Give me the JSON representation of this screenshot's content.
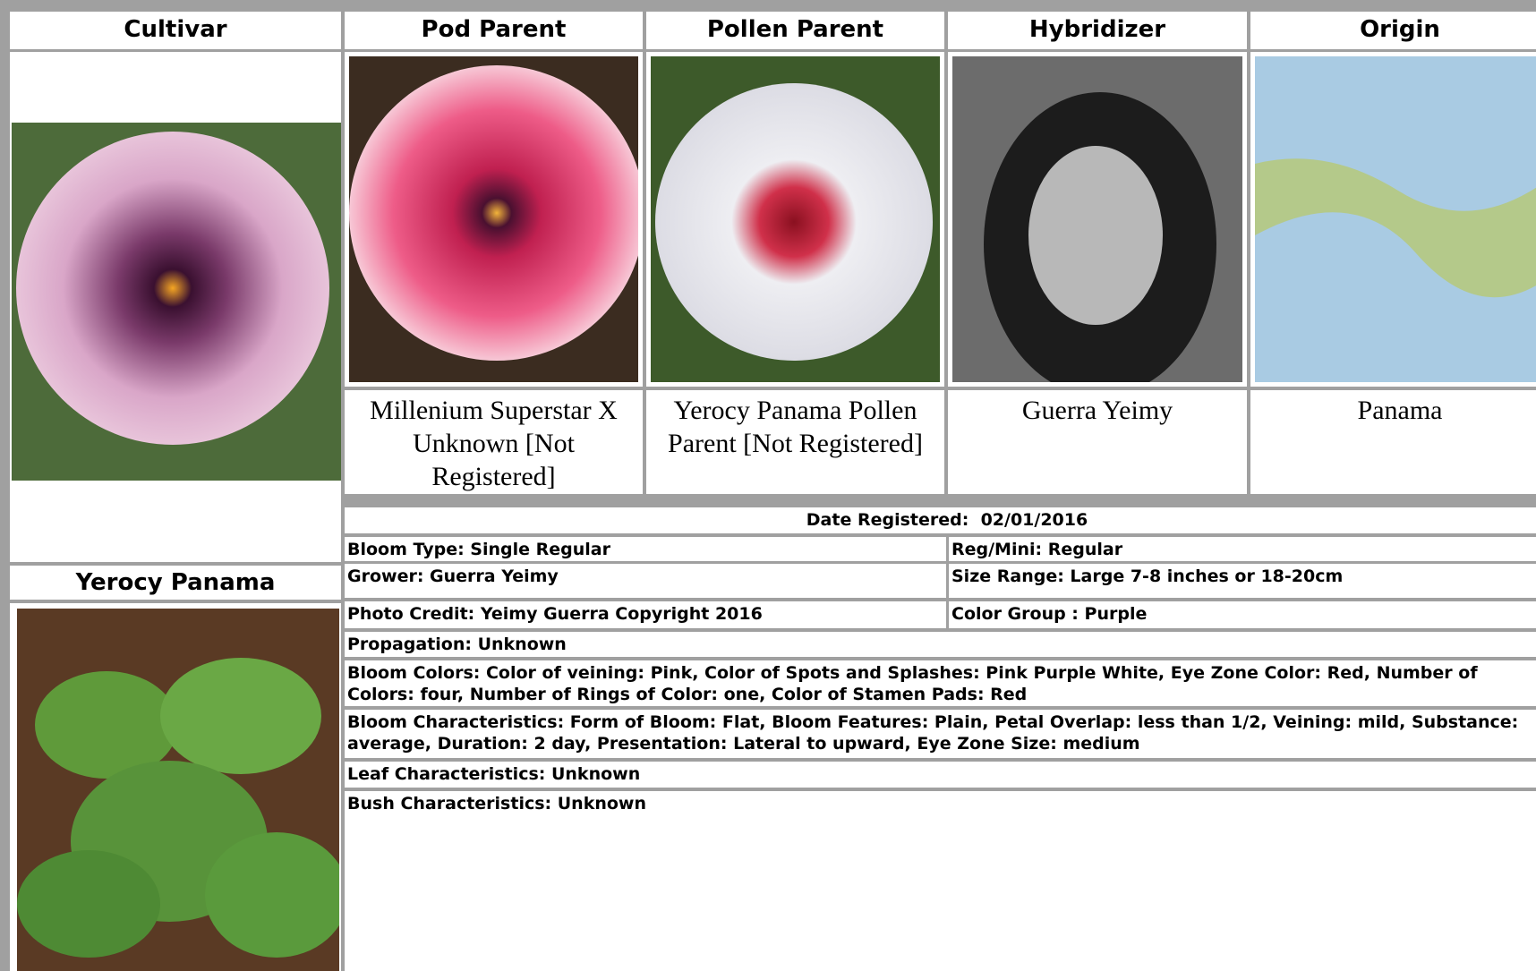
{
  "header": {
    "columns": [
      "Cultivar",
      "Pod Parent",
      "Pollen Parent",
      "Hybridizer",
      "Origin"
    ]
  },
  "captions": {
    "pod_parent": "Millenium Superstar X Unknown [Not Registered]",
    "pollen_parent": "Yerocy Panama Pollen Parent [Not Registered]",
    "hybridizer": "Guerra Yeimy",
    "origin": "Panama"
  },
  "cultivar": {
    "name": "Yerocy Panama"
  },
  "registration": {
    "label": "Date Registered:",
    "date": "02/01/2016"
  },
  "details": {
    "bloom_type": "Bloom Type: Single Regular",
    "reg_mini": "Reg/Mini: Regular",
    "grower": "Grower: Guerra Yeimy",
    "size_range": "Size Range: Large 7-8 inches or 18-20cm",
    "photo_credit": "Photo Credit: Yeimy Guerra Copyright 2016",
    "color_group": "Color Group : Purple",
    "propagation": "Propagation: Unknown",
    "bloom_colors": "Bloom Colors: Color of veining: Pink, Color of Spots and Splashes: Pink Purple White, Eye Zone Color: Red, Number of Colors: four, Number of Rings of Color: one, Color of Stamen Pads: Red",
    "bloom_characteristics": "Bloom Characteristics: Form of Bloom: Flat, Bloom Features: Plain, Petal Overlap: less than 1/2, Veining: mild, Substance: average, Duration: 2 day, Presentation: Lateral to upward, Eye Zone Size: medium",
    "leaf_characteristics": "Leaf Characteristics: Unknown",
    "bush_characteristics": "Bush Characteristics: Unknown"
  }
}
